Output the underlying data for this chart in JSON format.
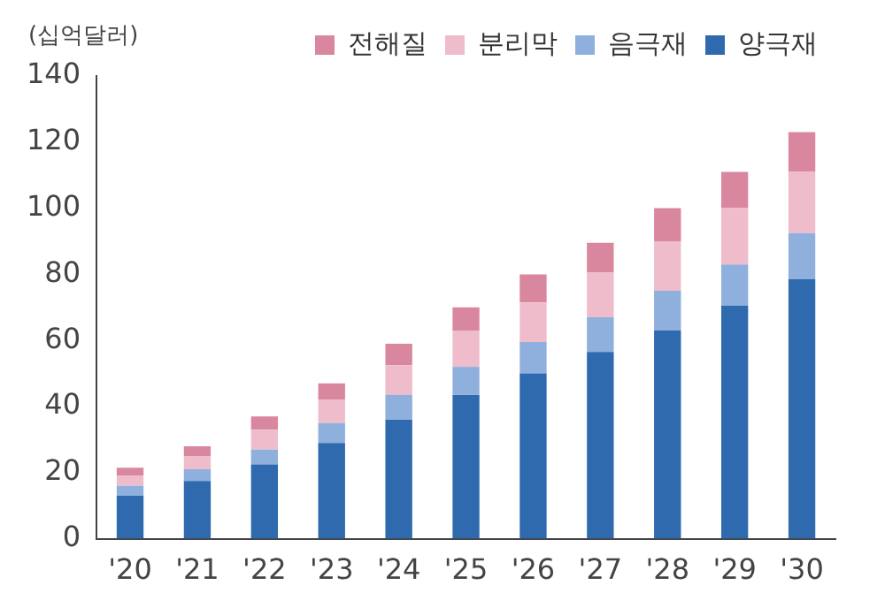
{
  "chart_data": {
    "type": "bar",
    "stacked": true,
    "ylabel": "(십억달러)",
    "categories": [
      "'20",
      "'21",
      "'22",
      "'23",
      "'24",
      "'25",
      "'26",
      "'27",
      "'28",
      "'29",
      "'30"
    ],
    "series": [
      {
        "name": "양극재",
        "color": "#2e6aad",
        "values": [
          13,
          17.5,
          22.5,
          29,
          36,
          43.5,
          50,
          56.5,
          63,
          70.5,
          78.5
        ]
      },
      {
        "name": "음극재",
        "color": "#8fb0dc",
        "values": [
          3,
          3.5,
          4.5,
          6,
          7.5,
          8.5,
          9.5,
          10.5,
          12,
          12.5,
          14
        ]
      },
      {
        "name": "분리막",
        "color": "#efbccc",
        "values": [
          3,
          4,
          6,
          7,
          9,
          11,
          12,
          13.5,
          15,
          17,
          18.5
        ]
      },
      {
        "name": "전해질",
        "color": "#d9879f",
        "values": [
          2.5,
          3,
          4,
          5,
          6.5,
          7,
          8.5,
          9,
          10,
          11,
          12
        ]
      }
    ],
    "ylim": [
      0,
      140
    ],
    "yticks": [
      0,
      20,
      40,
      60,
      80,
      100,
      120,
      140
    ],
    "grid": false,
    "legend": "top"
  }
}
